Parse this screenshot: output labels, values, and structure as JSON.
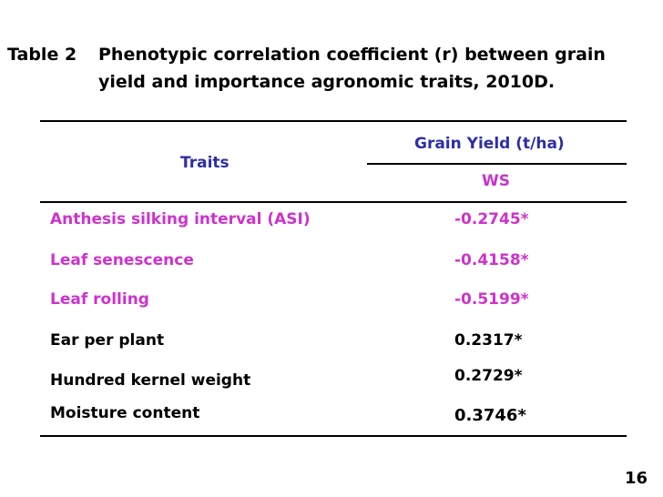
{
  "caption": {
    "label": "Table 2",
    "line1": "Phenotypic correlation coefficient (r) between grain",
    "line2": "yield and importance agronomic traits, 2010D."
  },
  "table": {
    "header": {
      "traits": "Traits",
      "grain_yield": "Grain Yield (t/ha)",
      "ws": "WS"
    },
    "rows": [
      {
        "trait": "Anthesis silking interval (ASI)",
        "value": "-0.2745*",
        "color": "#cc33cc"
      },
      {
        "trait": "Leaf senescence",
        "value": "-0.4158*",
        "color": "#cc33cc"
      },
      {
        "trait": "Leaf rolling",
        "value": "-0.5199*",
        "color": "#cc33cc"
      },
      {
        "trait": "Ear per plant",
        "value": "0.2317*",
        "color": "#000000"
      },
      {
        "trait": "Hundred kernel weight",
        "value": "0.2729*",
        "color": "#000000"
      },
      {
        "trait": "Moisture content",
        "value": "0.3746*",
        "color": "#000000"
      }
    ]
  },
  "colors": {
    "header_blue": "#2e2ea6",
    "magenta": "#cc33cc",
    "text_black": "#000000"
  },
  "page_number": "16"
}
